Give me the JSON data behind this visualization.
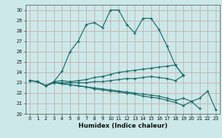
{
  "xlabel": "Humidex (Indice chaleur)",
  "xlim": [
    -0.5,
    23.5
  ],
  "ylim": [
    20,
    30.5
  ],
  "yticks": [
    20,
    21,
    22,
    23,
    24,
    25,
    26,
    27,
    28,
    29,
    30
  ],
  "xticks": [
    0,
    1,
    2,
    3,
    4,
    5,
    6,
    7,
    8,
    9,
    10,
    11,
    12,
    13,
    14,
    15,
    16,
    17,
    18,
    19,
    20,
    21,
    22,
    23
  ],
  "bg_color": "#cce8e8",
  "grid_color": "#c8aaaa",
  "line_color": "#1a6b6b",
  "lines": [
    [
      23.2,
      23.1,
      22.7,
      23.1,
      24.1,
      26.0,
      27.0,
      28.6,
      28.8,
      28.3,
      30.0,
      30.0,
      28.6,
      27.8,
      29.2,
      29.2,
      28.1,
      26.5,
      24.7,
      23.7,
      null,
      null,
      null,
      null
    ],
    [
      23.2,
      23.1,
      22.7,
      23.1,
      23.2,
      23.1,
      23.2,
      23.3,
      23.5,
      23.6,
      23.8,
      24.0,
      24.1,
      24.2,
      24.3,
      24.4,
      24.5,
      24.6,
      24.7,
      23.7,
      null,
      null,
      null,
      null
    ],
    [
      23.2,
      23.1,
      22.7,
      23.0,
      23.0,
      23.0,
      23.0,
      23.0,
      23.1,
      23.1,
      23.2,
      23.3,
      23.4,
      23.4,
      23.5,
      23.6,
      23.5,
      23.4,
      23.2,
      23.7,
      null,
      null,
      null,
      null
    ],
    [
      23.2,
      23.1,
      22.7,
      23.0,
      22.9,
      22.8,
      22.7,
      22.6,
      22.5,
      22.4,
      22.3,
      22.2,
      22.1,
      22.0,
      21.9,
      21.8,
      21.7,
      21.5,
      21.3,
      21.5,
      21.2,
      20.5,
      null,
      null
    ],
    [
      23.2,
      23.1,
      22.7,
      23.0,
      22.9,
      22.8,
      22.7,
      22.6,
      22.4,
      22.3,
      22.2,
      22.1,
      22.0,
      21.9,
      21.7,
      21.6,
      21.5,
      21.3,
      21.1,
      20.8,
      21.2,
      21.5,
      22.2,
      20.4
    ]
  ]
}
